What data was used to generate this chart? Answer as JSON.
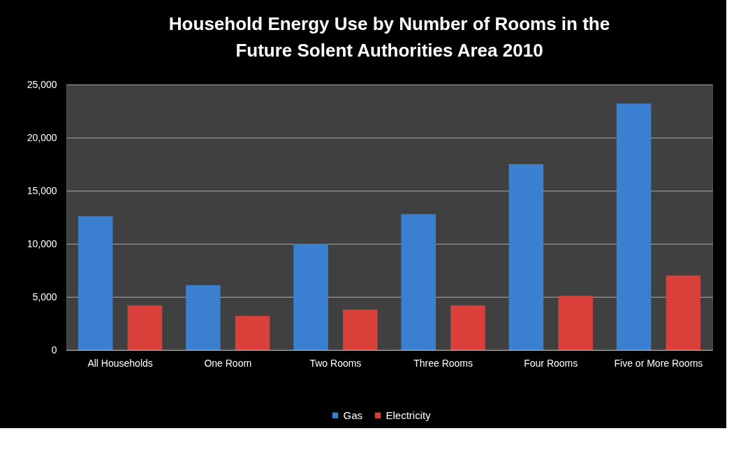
{
  "chart_data": {
    "type": "bar",
    "title": "Household Energy Use by Number of Rooms in the Future Solent Authorities Area 2010",
    "categories": [
      "All Households",
      "One Room",
      "Two Rooms",
      "Three Rooms",
      "Four Rooms",
      "Five or More Rooms"
    ],
    "series": [
      {
        "name": "Gas",
        "color": "#3a7fd0",
        "values": [
          12600,
          6100,
          10000,
          12800,
          17500,
          23200
        ]
      },
      {
        "name": "Electricity",
        "color": "#d9403a",
        "values": [
          4200,
          3200,
          3800,
          4200,
          5100,
          7000
        ]
      }
    ],
    "ylim": [
      0,
      25000
    ],
    "yticks": [
      0,
      {
        "value": 5000,
        "label": "5,000"
      },
      {
        "value": 10000,
        "label": "10,000"
      },
      {
        "value": 15000,
        "label": "15,000"
      },
      {
        "value": 20000,
        "label": "20,000"
      },
      {
        "value": 25000,
        "label": "25,000"
      }
    ],
    "grid": "y",
    "legend": "bottom"
  }
}
